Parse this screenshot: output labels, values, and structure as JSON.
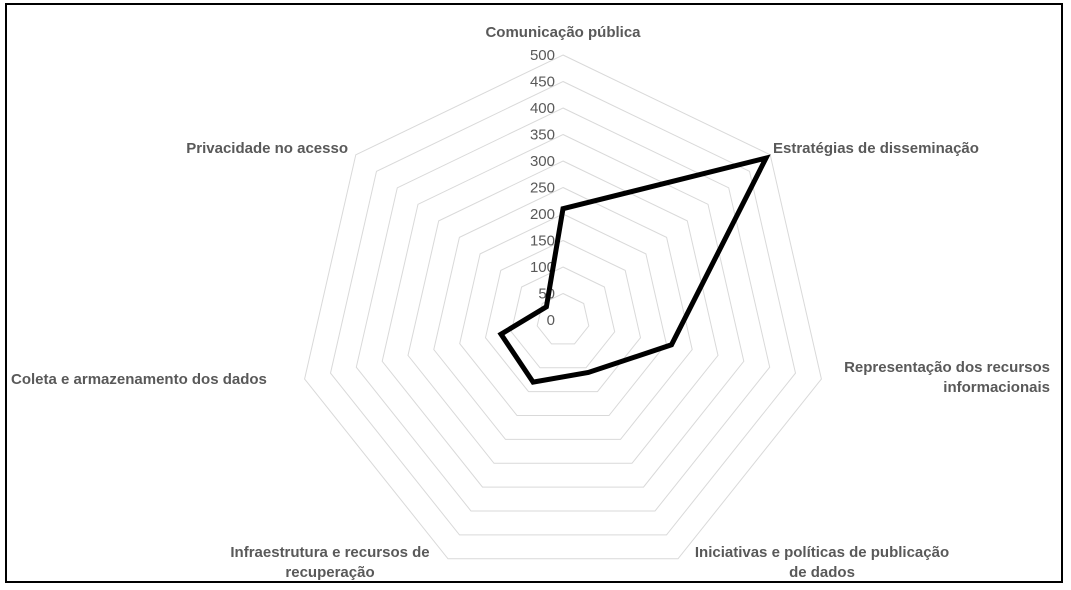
{
  "chart_data": {
    "type": "radar",
    "categories": [
      [
        "Comunicação pública"
      ],
      [
        "Estratégias de disseminação"
      ],
      [
        "Representação dos recursos",
        "informacionais"
      ],
      [
        "Iniciativas e políticas de publicação",
        "de dados"
      ],
      [
        "Infraestrutura e recursos de",
        "recuperação"
      ],
      [
        "Coleta e armazenamento dos dados"
      ],
      [
        "Privacidade no acesso"
      ]
    ],
    "ticks": [
      "0",
      "50",
      "100",
      "150",
      "200",
      "250",
      "300",
      "350",
      "400",
      "450",
      "500"
    ],
    "rmax": 500,
    "series": [
      {
        "values": [
          210,
          490,
          210,
          110,
          130,
          120,
          40
        ],
        "color": "#000000"
      }
    ],
    "grid": true
  }
}
